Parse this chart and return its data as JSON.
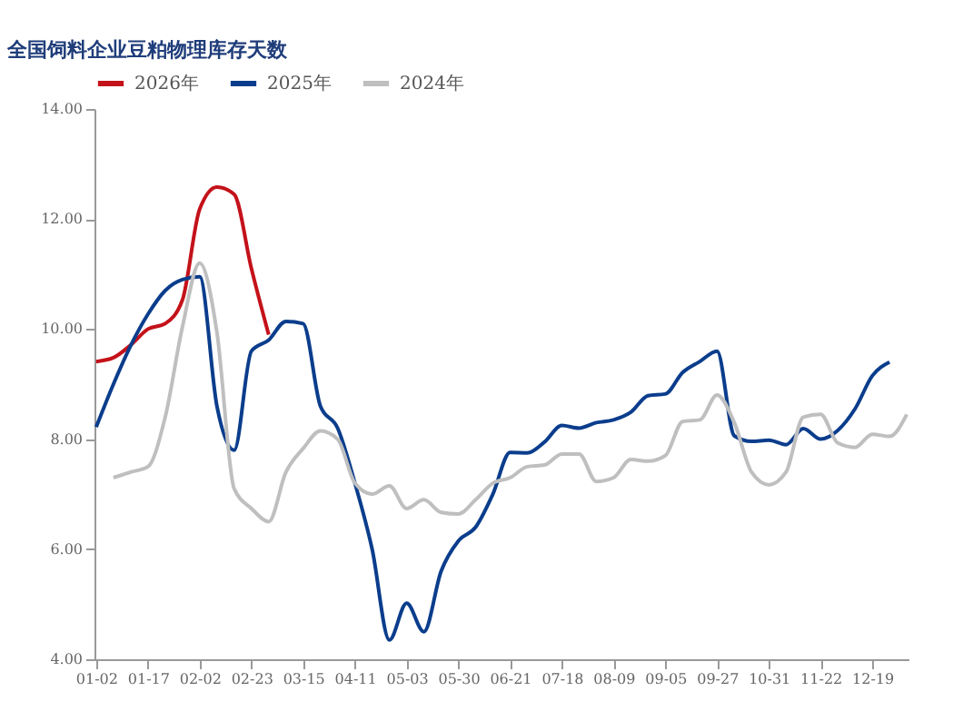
{
  "chart_data": {
    "type": "line",
    "title": "全国饲料企业豆粕物理库存天数",
    "categories": [
      "01-02",
      null,
      null,
      "01-17",
      null,
      null,
      "02-02",
      null,
      null,
      "02-23",
      null,
      null,
      "03-15",
      null,
      null,
      "04-11",
      null,
      null,
      "05-03",
      null,
      null,
      "05-30",
      null,
      null,
      "06-21",
      null,
      null,
      "07-18",
      null,
      null,
      "08-09",
      null,
      null,
      "09-05",
      null,
      null,
      "09-27",
      null,
      null,
      "10-31",
      null,
      null,
      "11-22",
      null,
      null,
      "12-19",
      null,
      null
    ],
    "series": [
      {
        "name": "2026年",
        "color": "#c4121a",
        "values": [
          9.41,
          9.48,
          9.71,
          10.0,
          10.1,
          10.53,
          12.18,
          12.58,
          12.45,
          11.1,
          9.9,
          null,
          null,
          null,
          null,
          null,
          null,
          null,
          null,
          null,
          null,
          null,
          null,
          null,
          null,
          null,
          null,
          null,
          null,
          null,
          null,
          null,
          null,
          null,
          null,
          null,
          null,
          null,
          null,
          null,
          null,
          null,
          null,
          null,
          null,
          null,
          null,
          null
        ]
      },
      {
        "name": "2025年",
        "color": "#0b3d8c",
        "values": [
          8.22,
          9.0,
          9.7,
          10.27,
          10.7,
          10.9,
          10.95,
          8.6,
          7.8,
          9.6,
          9.8,
          10.14,
          10.1,
          8.6,
          8.2,
          7.2,
          6.0,
          4.35,
          5.02,
          4.5,
          5.6,
          6.15,
          6.4,
          7.0,
          7.76,
          7.75,
          7.95,
          8.25,
          8.2,
          8.3,
          8.35,
          8.49,
          8.79,
          8.82,
          9.21,
          9.41,
          9.6,
          8.06,
          7.96,
          7.98,
          7.9,
          8.19,
          8.0,
          8.16,
          8.55,
          9.15,
          9.4,
          null
        ]
      },
      {
        "name": "2024年",
        "color": "#bfbfbf",
        "values": [
          null,
          7.3,
          7.4,
          7.5,
          8.4,
          10.04,
          11.2,
          9.94,
          7.1,
          6.74,
          6.5,
          7.4,
          7.83,
          8.15,
          8.0,
          7.2,
          7.0,
          7.15,
          6.74,
          6.9,
          6.67,
          6.64,
          6.9,
          7.2,
          7.3,
          7.5,
          7.53,
          7.73,
          7.73,
          7.23,
          7.3,
          7.63,
          7.6,
          7.7,
          8.32,
          8.35,
          8.8,
          8.3,
          7.4,
          7.17,
          7.4,
          8.4,
          8.45,
          7.93,
          7.85,
          8.09,
          8.05,
          8.45
        ]
      }
    ],
    "ylim": [
      4,
      14
    ],
    "yticks": [
      {
        "value": 4,
        "label": "4.00"
      },
      {
        "value": 6,
        "label": "6.00"
      },
      {
        "value": 8,
        "label": "8.00"
      },
      {
        "value": 10,
        "label": "10.00"
      },
      {
        "value": 12,
        "label": "12.00"
      },
      {
        "value": 14,
        "label": "14.00"
      }
    ],
    "legend": "top",
    "grid": false,
    "marker": "none",
    "line_style": "solid"
  }
}
